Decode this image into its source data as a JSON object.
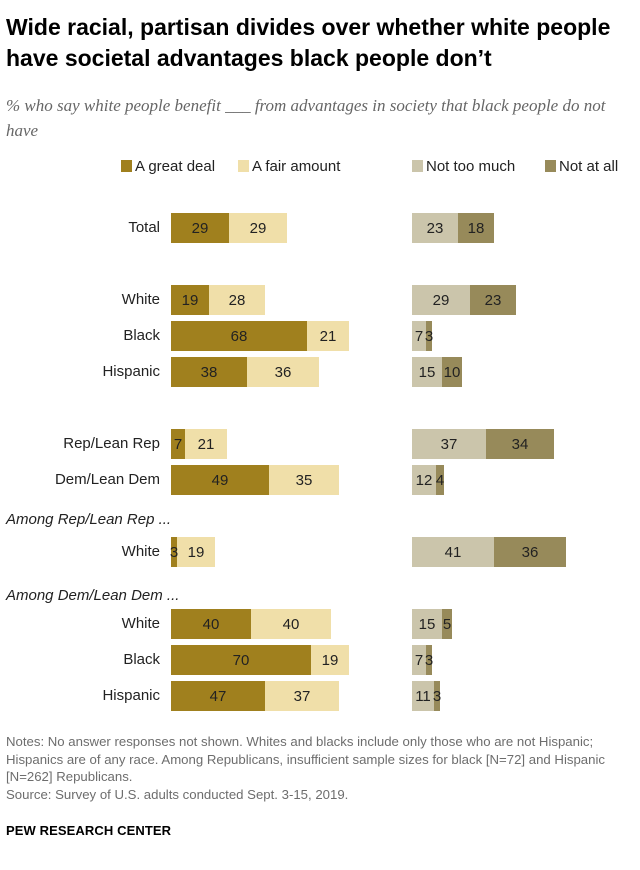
{
  "header": {
    "title": "Wide racial, partisan divides over whether white people have societal advantages black people don’t",
    "subtitle": "% who say white people benefit ___ from advantages in society that black people do not have"
  },
  "colors": {
    "a_great_deal": "#a0801e",
    "a_fair_amount": "#f0dfa9",
    "not_too_much": "#cbc5ab",
    "not_at_all": "#978a5a"
  },
  "chart_data": {
    "type": "diverging-bar",
    "legend": [
      "A great deal",
      "A fair amount",
      "Not too much",
      "Not at all"
    ],
    "rows": [
      {
        "label": "Total",
        "section": "",
        "great_deal": 29,
        "fair_amount": 29,
        "not_too_much": 23,
        "not_at_all": 18
      },
      {
        "label": "White",
        "section": "",
        "great_deal": 19,
        "fair_amount": 28,
        "not_too_much": 29,
        "not_at_all": 23
      },
      {
        "label": "Black",
        "section": "",
        "great_deal": 68,
        "fair_amount": 21,
        "not_too_much": 7,
        "not_at_all": 3
      },
      {
        "label": "Hispanic",
        "section": "",
        "great_deal": 38,
        "fair_amount": 36,
        "not_too_much": 15,
        "not_at_all": 10
      },
      {
        "label": "Rep/Lean Rep",
        "section": "",
        "great_deal": 7,
        "fair_amount": 21,
        "not_too_much": 37,
        "not_at_all": 34
      },
      {
        "label": "Dem/Lean Dem",
        "section": "",
        "great_deal": 49,
        "fair_amount": 35,
        "not_too_much": 12,
        "not_at_all": 4
      },
      {
        "label": "White",
        "section": "Among Rep/Lean Rep ...",
        "great_deal": 3,
        "fair_amount": 19,
        "not_too_much": 41,
        "not_at_all": 36
      },
      {
        "label": "White",
        "section": "Among Dem/Lean Dem ...",
        "great_deal": 40,
        "fair_amount": 40,
        "not_too_much": 15,
        "not_at_all": 5
      },
      {
        "label": "Black",
        "section": "",
        "great_deal": 70,
        "fair_amount": 19,
        "not_too_much": 7,
        "not_at_all": 3
      },
      {
        "label": "Hispanic",
        "section": "",
        "great_deal": 47,
        "fair_amount": 37,
        "not_too_much": 11,
        "not_at_all": 3
      }
    ]
  },
  "footer": {
    "notes": "Notes: No answer responses not shown. Whites and blacks include only those who are not Hispanic; Hispanics are of any race. Among Republicans, insufficient sample sizes for black [N=72] and Hispanic [N=262] Republicans.",
    "source": "Source: Survey of U.S. adults conducted Sept. 3-15, 2019.",
    "brand": "PEW RESEARCH CENTER"
  }
}
